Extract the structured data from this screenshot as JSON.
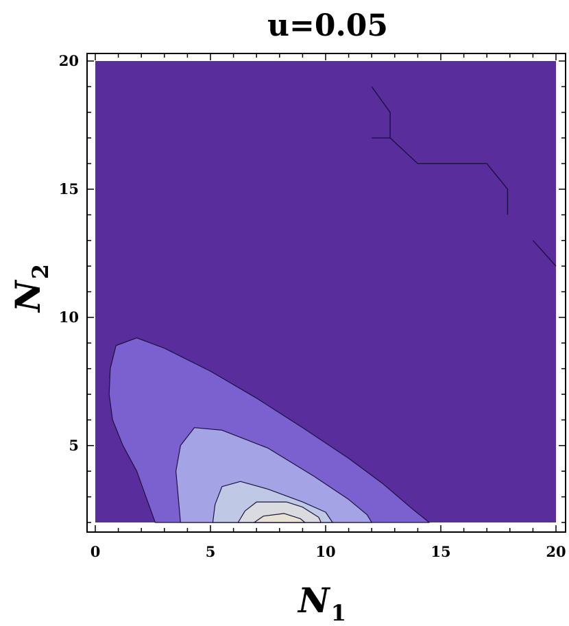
{
  "chart_data": {
    "type": "contour",
    "title": "u=0.05",
    "xlabel": "N",
    "xlabel_sub": "1",
    "ylabel": "N",
    "ylabel_sub": "2",
    "xlim": [
      0,
      20
    ],
    "ylim": [
      2,
      20
    ],
    "xticks": [
      0,
      5,
      10,
      15,
      20
    ],
    "yticks": [
      5,
      10,
      15,
      20
    ],
    "background_color": "#5a2d9c",
    "levels": [
      {
        "level": 1,
        "color": "#7b61cf",
        "points": [
          [
            2.6,
            2
          ],
          [
            2.2,
            3
          ],
          [
            1.8,
            4
          ],
          [
            1.2,
            5
          ],
          [
            0.75,
            6
          ],
          [
            0.6,
            7
          ],
          [
            0.65,
            8
          ],
          [
            0.9,
            8.9
          ],
          [
            1.8,
            9.2
          ],
          [
            3,
            8.8
          ],
          [
            5,
            7.9
          ],
          [
            7,
            6.85
          ],
          [
            9,
            5.7
          ],
          [
            11,
            4.5
          ],
          [
            12.5,
            3.5
          ],
          [
            13.8,
            2.5
          ],
          [
            14.5,
            2
          ]
        ]
      },
      {
        "level": 2,
        "color": "#a4a3e6",
        "points": [
          [
            3.7,
            2
          ],
          [
            3.6,
            3
          ],
          [
            3.5,
            4
          ],
          [
            3.7,
            5
          ],
          [
            4.3,
            5.7
          ],
          [
            5.5,
            5.6
          ],
          [
            7.5,
            4.9
          ],
          [
            9.5,
            3.8
          ],
          [
            11,
            2.9
          ],
          [
            11.8,
            2.3
          ],
          [
            12,
            2
          ]
        ]
      },
      {
        "level": 3,
        "color": "#bfc9e6",
        "points": [
          [
            5.1,
            2
          ],
          [
            5.2,
            2.7
          ],
          [
            5.5,
            3.4
          ],
          [
            6.3,
            3.6
          ],
          [
            7.5,
            3.3
          ],
          [
            9,
            2.8
          ],
          [
            10,
            2.4
          ],
          [
            10.3,
            2
          ]
        ]
      },
      {
        "level": 4,
        "color": "#dadbdf",
        "points": [
          [
            6.2,
            2
          ],
          [
            6.5,
            2.45
          ],
          [
            7,
            2.8
          ],
          [
            8.3,
            2.8
          ],
          [
            9,
            2.6
          ],
          [
            9.7,
            2.2
          ],
          [
            9.8,
            2
          ]
        ]
      },
      {
        "level": 5,
        "color": "#e8e2d4",
        "points": [
          [
            6.9,
            2
          ],
          [
            7.3,
            2.25
          ],
          [
            8.2,
            2.35
          ],
          [
            8.9,
            2.15
          ],
          [
            9.1,
            2
          ]
        ]
      }
    ],
    "isolines": [
      [
        [
          12,
          19
        ],
        [
          12.8,
          18
        ],
        [
          12.8,
          17
        ],
        [
          12,
          17
        ]
      ],
      [
        [
          12.8,
          17
        ],
        [
          14,
          16
        ],
        [
          17,
          16
        ],
        [
          17.9,
          15
        ],
        [
          17.9,
          14
        ]
      ],
      [
        [
          19,
          13
        ],
        [
          20,
          12
        ]
      ]
    ]
  }
}
